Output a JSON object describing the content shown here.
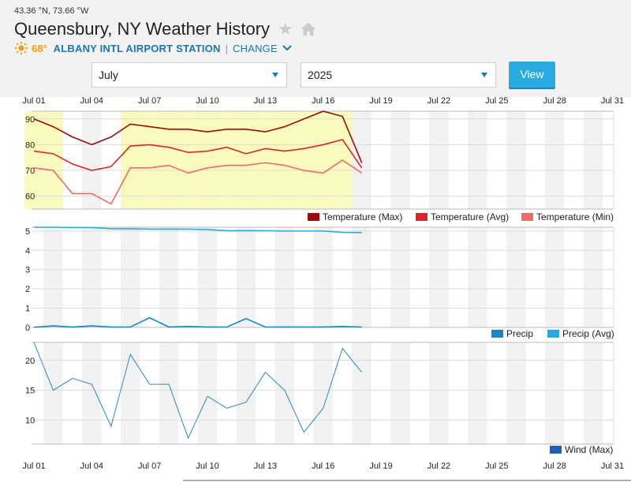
{
  "header": {
    "coords": "43.36 °N, 73.66 °W",
    "title": "Queensbury, NY Weather History",
    "current_temp": "68°",
    "station": "ALBANY INTL AIRPORT STATION",
    "separator": "|",
    "change": "CHANGE"
  },
  "controls": {
    "month": "July",
    "year": "2025",
    "view_label": "View"
  },
  "colors": {
    "temp_max": "#9b0d0d",
    "temp_avg": "#d9262c",
    "temp_min": "#ef6b66",
    "precip": "#1a86c4",
    "precip_avg": "#29a9dd",
    "wind": "#2f86c8",
    "wind_legend": "#1f5fb8",
    "highlight": "#fbfbb8",
    "accent": "#1d76b0",
    "button": "#29abe2"
  },
  "chart_data": [
    {
      "type": "line",
      "name": "temperature",
      "x_ticks": [
        "Jul 01",
        "Jul 04",
        "Jul 07",
        "Jul 10",
        "Jul 13",
        "Jul 16",
        "Jul 19",
        "Jul 22",
        "Jul 25",
        "Jul 28",
        "Jul 31"
      ],
      "x": [
        1,
        2,
        3,
        4,
        5,
        6,
        7,
        8,
        9,
        10,
        11,
        12,
        13,
        14,
        15,
        16,
        17,
        18
      ],
      "ylim": [
        55,
        93
      ],
      "y_ticks": [
        60,
        70,
        80,
        90
      ],
      "series": [
        {
          "name": "Temperature (Max)",
          "values": [
            90,
            87,
            83,
            80,
            83,
            88,
            87,
            86,
            86,
            85,
            86,
            86,
            85,
            87,
            90,
            93,
            91,
            73
          ]
        },
        {
          "name": "Temperature (Avg)",
          "values": [
            77.5,
            76.5,
            72.5,
            70,
            71.5,
            79.5,
            80,
            79,
            77,
            77.5,
            79,
            76.5,
            78.5,
            77.5,
            78.5,
            80,
            82,
            71
          ]
        },
        {
          "name": "Temperature (Min)",
          "values": [
            71,
            70,
            61,
            61,
            57,
            71,
            71,
            72,
            69,
            71,
            72,
            72,
            73,
            72,
            70,
            69,
            74,
            69
          ]
        }
      ],
      "highlight_ranges": [
        [
          1,
          2
        ],
        [
          6,
          17
        ]
      ]
    },
    {
      "type": "line",
      "name": "precip",
      "x": [
        1,
        2,
        3,
        4,
        5,
        6,
        7,
        8,
        9,
        10,
        11,
        12,
        13,
        14,
        15,
        16,
        17,
        18
      ],
      "ylim": [
        0,
        5.2
      ],
      "y_ticks": [
        0,
        1,
        2,
        3,
        4,
        5
      ],
      "series": [
        {
          "name": "Precip",
          "values": [
            0.01,
            0.08,
            0.02,
            0.08,
            0.02,
            0.02,
            0.5,
            0.02,
            0.05,
            0.02,
            0.02,
            0.45,
            0.02,
            0.02,
            0.02,
            0.02,
            0.05,
            0.02
          ]
        },
        {
          "name": "Precip (Avg)",
          "values": [
            5.2,
            5.2,
            5.18,
            5.18,
            5.12,
            5.12,
            5.1,
            5.1,
            5.1,
            5.08,
            5.02,
            5.02,
            5.02,
            5.0,
            5.0,
            5.0,
            4.93,
            4.92
          ]
        }
      ]
    },
    {
      "type": "line",
      "name": "wind",
      "x": [
        1,
        2,
        3,
        4,
        5,
        6,
        7,
        8,
        9,
        10,
        11,
        12,
        13,
        14,
        15,
        16,
        17,
        18
      ],
      "ylim": [
        6,
        23
      ],
      "y_ticks": [
        10,
        15,
        20
      ],
      "series": [
        {
          "name": "Wind (Max)",
          "values": [
            23,
            15,
            17,
            16,
            9,
            21,
            16,
            16,
            7,
            14,
            12,
            13,
            18,
            15,
            8,
            12,
            22,
            18
          ]
        }
      ]
    }
  ]
}
